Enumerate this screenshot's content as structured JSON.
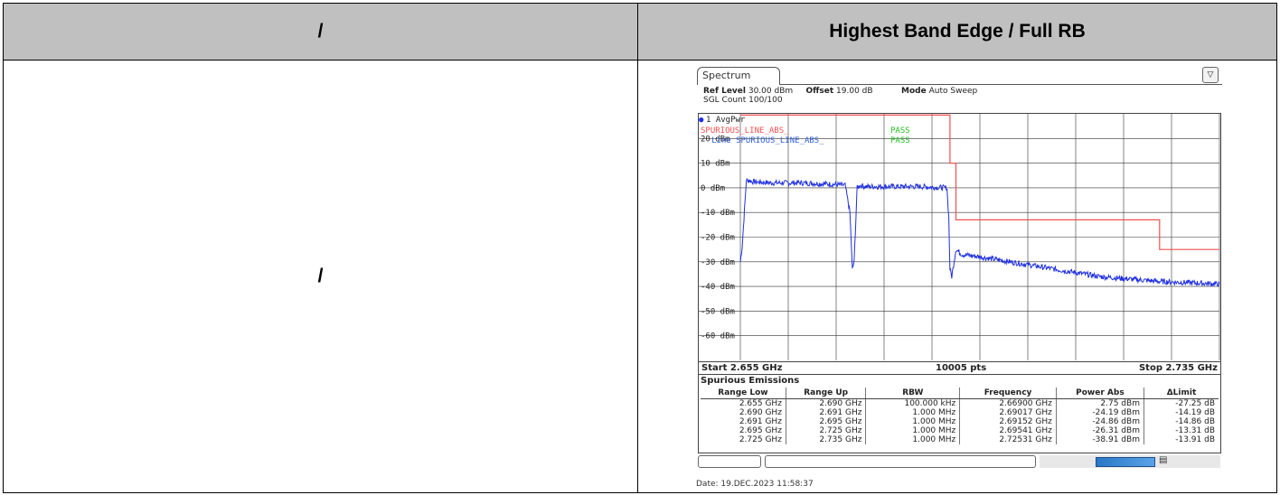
{
  "table": {
    "header_left": "/",
    "header_right": "Highest Band Edge / Full RB",
    "cell_left": "/"
  },
  "analyzer": {
    "tab_label": "Spectrum",
    "menu_icon": "settings-menu-icon",
    "ref_level_label": "Ref Level",
    "ref_level_value": "30.00 dBm",
    "offset_label": "Offset",
    "offset_value": "19.00 dB",
    "mode_label": "Mode",
    "mode_value": "Auto Sweep",
    "sgl_count": "SGL Count 100/100",
    "trace_label": "1 AvgPwr",
    "limit_line_1": "SPURIOUS_LINE_ABS_",
    "limit_line_2": "Line  SPURIOUS_LINE_ABS_",
    "pass_1": "PASS",
    "pass_2": "PASS",
    "start": "Start 2.655 GHz",
    "points": "10005 pts",
    "stop": "Stop 2.735 GHz",
    "date": "Date: 19.DEC.2023  11:58:37"
  },
  "chart_data": {
    "type": "line",
    "xlabel": "",
    "ylabel": "",
    "xlim": [
      2.655,
      2.735
    ],
    "ylim": [
      -70,
      30
    ],
    "y_ticks": [
      "20 dBm",
      "10 dBm",
      "0 dBm",
      "-10 dBm",
      "-20 dBm",
      "-30 dBm",
      "-40 dBm",
      "-50 dBm",
      "-60 dBm"
    ],
    "y_tick_values": [
      20,
      10,
      0,
      -10,
      -20,
      -30,
      -40,
      -50,
      -60
    ],
    "grid": true,
    "colors": {
      "trace": "#1f2fe0",
      "limit": "#f05050",
      "pass": "#1fbf1f",
      "limit_label": "#2f5fdf"
    },
    "series": [
      {
        "x": [
          2.655,
          2.6553,
          2.6558,
          2.656,
          2.6565,
          2.657,
          2.66,
          2.665,
          2.67,
          2.6725,
          2.6733,
          2.6737,
          2.674,
          2.6745,
          2.675,
          2.676,
          2.68,
          2.685,
          2.6895,
          2.6898,
          2.69,
          2.6903,
          2.691,
          2.6915,
          2.692,
          2.695,
          2.7,
          2.705,
          2.71,
          2.715,
          2.72,
          2.725,
          2.73,
          2.735
        ],
        "y": [
          -30,
          -24,
          -5,
          3,
          3,
          2.5,
          2,
          2,
          1.5,
          1,
          -10,
          -33,
          -30,
          0,
          1,
          0.5,
          0.5,
          0.5,
          0,
          -12,
          -33,
          -36,
          -25,
          -26,
          -27,
          -28,
          -30,
          -32,
          -34,
          -36,
          -37,
          -38,
          -38.5,
          -39
        ]
      }
    ],
    "limit_line": {
      "x": [
        2.655,
        2.69,
        2.69,
        2.691,
        2.691,
        2.695,
        2.695,
        2.725,
        2.725,
        2.735
      ],
      "y": [
        30,
        30,
        10,
        10,
        -13,
        -13,
        -13,
        -13,
        -25,
        -25
      ]
    }
  },
  "spurious": {
    "title": "Spurious Emissions",
    "columns": [
      "Range Low",
      "Range Up",
      "RBW",
      "Frequency",
      "Power Abs",
      "ΔLimit"
    ],
    "rows": [
      [
        "2.655 GHz",
        "2.690 GHz",
        "100.000 kHz",
        "2.66900 GHz",
        "2.75 dBm",
        "-27.25 dB"
      ],
      [
        "2.690 GHz",
        "2.691 GHz",
        "1.000 MHz",
        "2.69017 GHz",
        "-24.19 dBm",
        "-14.19 dB"
      ],
      [
        "2.691 GHz",
        "2.695 GHz",
        "1.000 MHz",
        "2.69152 GHz",
        "-24.86 dBm",
        "-14.86 dB"
      ],
      [
        "2.695 GHz",
        "2.725 GHz",
        "1.000 MHz",
        "2.69541 GHz",
        "-26.31 dBm",
        "-13.31 dB"
      ],
      [
        "2.725 GHz",
        "2.735 GHz",
        "1.000 MHz",
        "2.72531 GHz",
        "-38.91 dBm",
        "-13.91 dB"
      ]
    ]
  }
}
